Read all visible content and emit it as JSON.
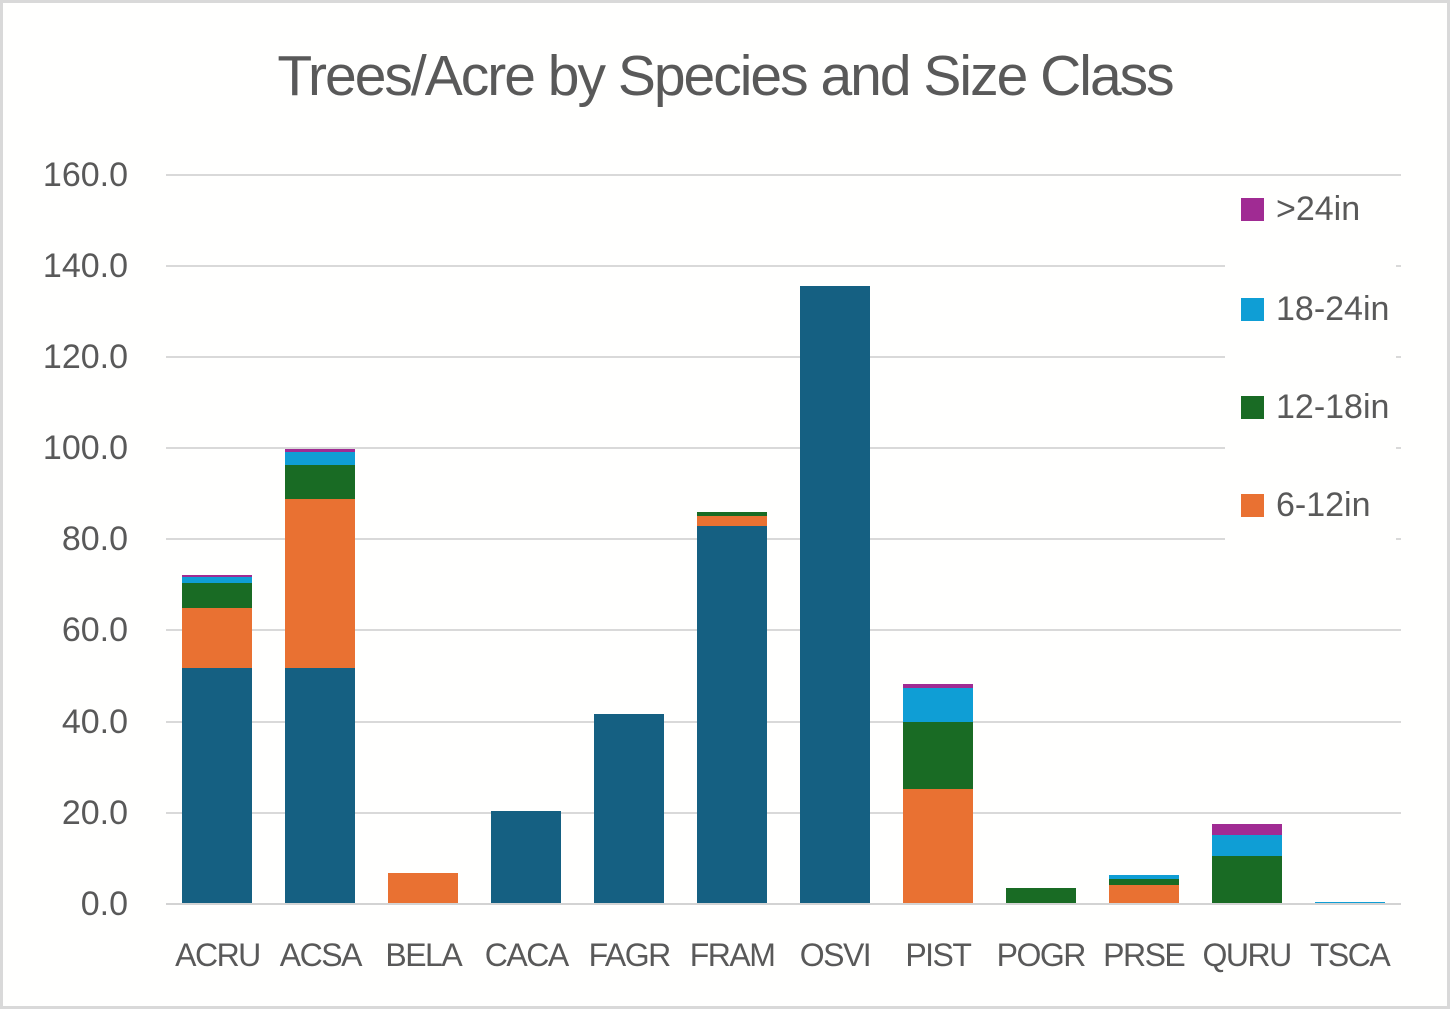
{
  "page": {
    "background": "#ffffff",
    "border_color": "#d9d9d9",
    "text_color": "#595959",
    "gridline_color": "#d9d9d9"
  },
  "chart_data": {
    "type": "bar",
    "stacked": true,
    "title": "Trees/Acre by Species and Size Class",
    "categories": [
      "ACRU",
      "ACSA",
      "BELA",
      "CACA",
      "FAGR",
      "FRAM",
      "OSVI",
      "PIST",
      "POGR",
      "PRSE",
      "QURU",
      "TSCA"
    ],
    "series": [
      {
        "name": "",
        "legend_visible": false,
        "color": "#156082",
        "values": [
          51.8,
          51.7,
          0,
          20.5,
          41.6,
          82.9,
          135.5,
          0,
          0,
          0,
          0,
          0
        ]
      },
      {
        "name": "6-12in",
        "legend_visible": true,
        "color": "#E97132",
        "values": [
          13.1,
          37.2,
          6.8,
          0,
          0,
          2.1,
          0,
          25.2,
          0,
          4.1,
          0,
          0
        ]
      },
      {
        "name": "12-18in",
        "legend_visible": true,
        "color": "#196B24",
        "values": [
          5.5,
          7.3,
          0,
          0,
          0,
          0.9,
          0,
          14.8,
          3.4,
          1.4,
          10.6,
          0
        ]
      },
      {
        "name": "18-24in",
        "legend_visible": true,
        "color": "#0F9ED5",
        "values": [
          1.3,
          2.9,
          0,
          0,
          0,
          0,
          0,
          7.4,
          0,
          0.9,
          4.6,
          0.4
        ]
      },
      {
        "name": ">24in",
        "legend_visible": true,
        "color": "#A02B93",
        "values": [
          0.4,
          0.7,
          0,
          0,
          0,
          0,
          0,
          0.8,
          0,
          0,
          2.4,
          0
        ]
      }
    ],
    "ylim": [
      0,
      160
    ],
    "y_ticks": [
      "0.0",
      "20.0",
      "40.0",
      "60.0",
      "80.0",
      "100.0",
      "120.0",
      "140.0",
      "160.0"
    ],
    "grid": "horizontal",
    "legend_position": "right-overlay"
  },
  "legend": {
    "items": [
      {
        "label": ">24in",
        "color": "#A02B93"
      },
      {
        "label": "18-24in",
        "color": "#0F9ED5"
      },
      {
        "label": "12-18in",
        "color": "#196B24"
      },
      {
        "label": "6-12in",
        "color": "#E97132"
      }
    ]
  }
}
